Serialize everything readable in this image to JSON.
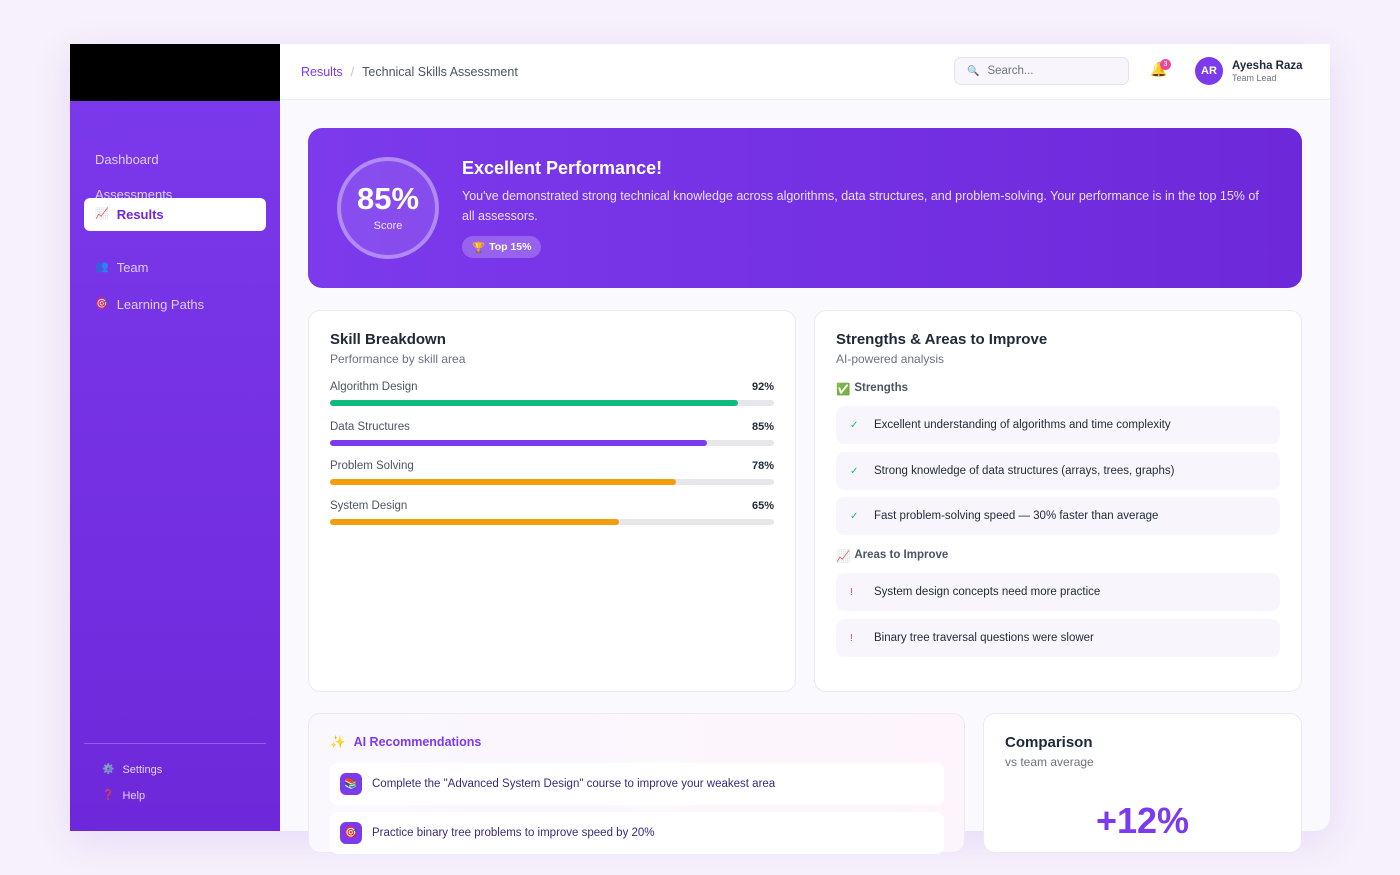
{
  "header": {
    "breadcrumb": [
      "Results",
      "Technical Skills Assessment"
    ],
    "breadcrumb_separator": "/",
    "search_icon": "🔍",
    "search_placeholder": "Search...",
    "bell_icon": "🔔",
    "notification_count": "3",
    "user": {
      "initials": "AR",
      "name": "Ayesha Raza",
      "role": "Team Lead"
    }
  },
  "sidebar": {
    "nav": [
      {
        "icon": "",
        "label": "Dashboard"
      },
      {
        "icon": "",
        "label": "Assessments"
      },
      {
        "icon": "📈",
        "label": "Results",
        "active": true
      },
      {
        "icon": "👥",
        "label": "Team"
      },
      {
        "icon": "🎯",
        "label": "Learning Paths"
      }
    ],
    "footer": [
      {
        "icon": "⚙️",
        "label": "Settings"
      },
      {
        "icon": "❓",
        "label": "Help"
      }
    ]
  },
  "hero": {
    "score": "85%",
    "score_caption": "Score",
    "title": "Excellent Performance!",
    "text": "You've demonstrated strong technical knowledge across algorithms, data structures, and problem-solving. Your performance is in the top 15% of all assessors.",
    "badge_icon": "🏆",
    "badge": "Top 15%"
  },
  "skills": {
    "title": "Skill Breakdown",
    "subtitle": "Performance by skill area",
    "items": [
      {
        "name": "Algorithm Design",
        "value": 92,
        "label": "92%",
        "color": "#10b981"
      },
      {
        "name": "Data Structures",
        "value": 85,
        "label": "85%",
        "color": "#7c3aed"
      },
      {
        "name": "Problem Solving",
        "value": 78,
        "label": "78%",
        "color": "#f59e0b"
      },
      {
        "name": "System Design",
        "value": 65,
        "label": "65%",
        "color": "#f59e0b"
      }
    ]
  },
  "analysis": {
    "title": "Strengths & Areas to Improve",
    "subtitle": "AI-powered analysis",
    "strengths_heading": {
      "icon": "✅",
      "label": "Strengths"
    },
    "strength_mark": "✓",
    "strengths": [
      "Excellent understanding of algorithms and time complexity",
      "Strong knowledge of data structures (arrays, trees, graphs)",
      "Fast problem-solving speed — 30% faster than average"
    ],
    "improve_heading": {
      "icon": "📈",
      "label": "Areas to Improve"
    },
    "improve_mark": "!",
    "improvements": [
      "System design concepts need more practice",
      "Binary tree traversal questions were slower"
    ]
  },
  "recommendations": {
    "icon": "✨",
    "title": "AI Recommendations",
    "items": [
      {
        "icon": "📚",
        "text": "Complete the \"Advanced System Design\" course to improve your weakest area"
      },
      {
        "icon": "🎯",
        "text": "Practice binary tree problems to improve speed by 20%"
      }
    ]
  },
  "comparison": {
    "title": "Comparison",
    "subtitle": "vs team average",
    "value": "+12%"
  }
}
